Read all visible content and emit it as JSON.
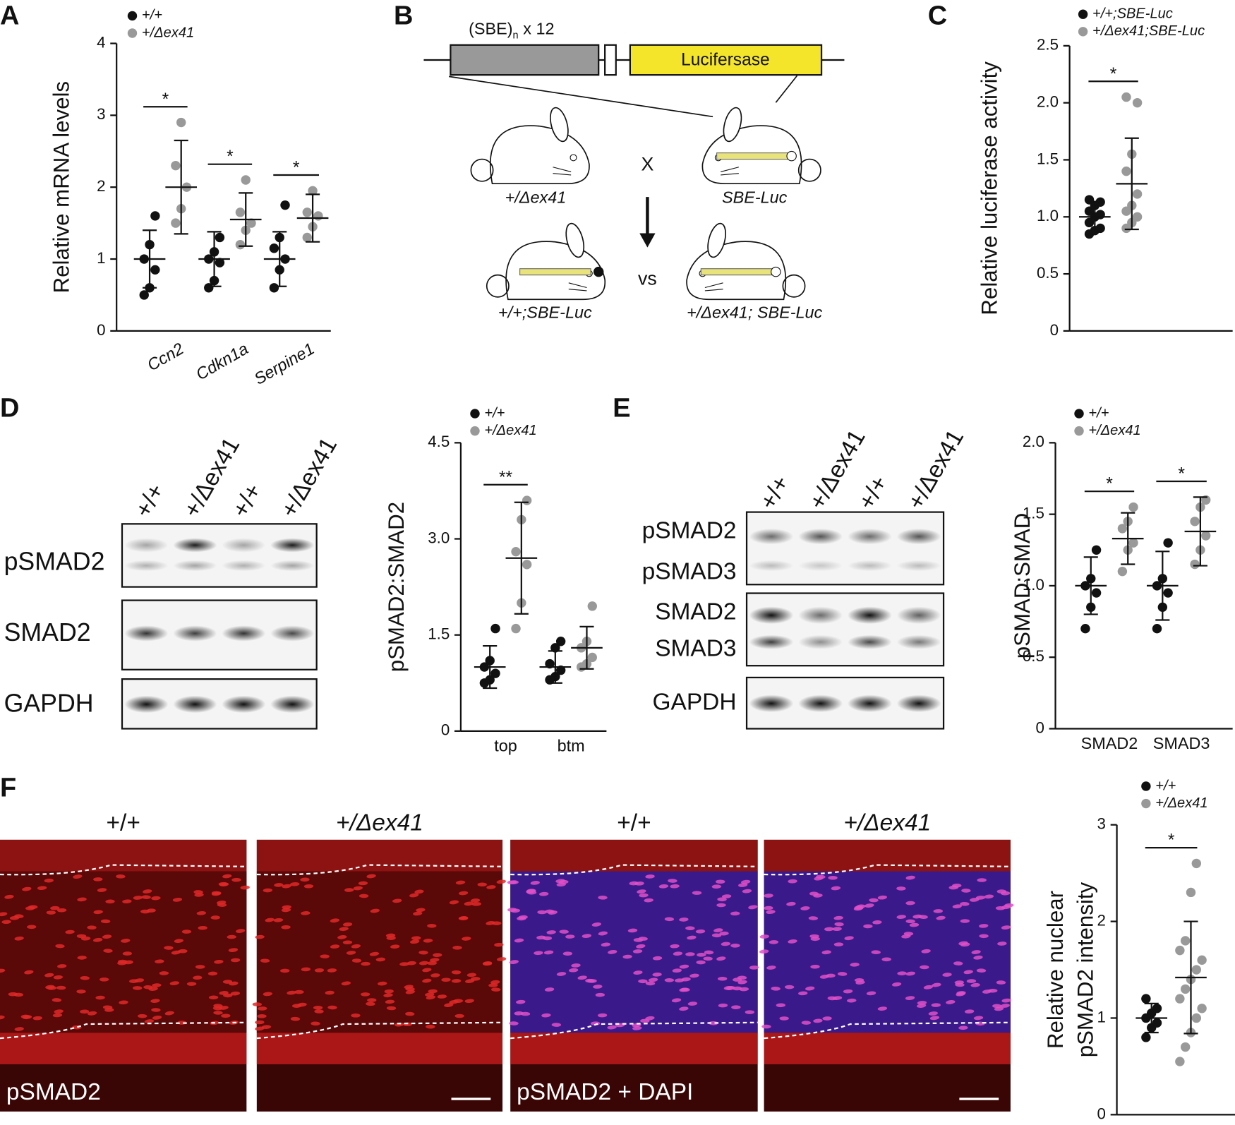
{
  "panel_labels": [
    "A",
    "B",
    "C",
    "D",
    "E",
    "F"
  ],
  "diagram": {
    "sbe": "(SBE)",
    "sub": "n",
    "repeat": "x 12",
    "reporter": "Lucifersase",
    "parent1": "+/Δex41",
    "parent2": "SBE-Luc",
    "cross": "X",
    "offspring1": "+/+;SBE-Luc",
    "vs": "vs",
    "offspring2": "+/Δex41; SBE-Luc"
  },
  "blot_d": {
    "lanes": [
      "+/+",
      "+/Δex41",
      "+/+",
      "+/Δex41"
    ],
    "rows": [
      "pSMAD2",
      "SMAD2",
      "GAPDH"
    ]
  },
  "blot_e": {
    "lanes": [
      "+/+",
      "+/Δex41",
      "+/+",
      "+/Δex41"
    ],
    "rows": [
      "pSMAD2",
      "pSMAD3",
      "SMAD2",
      "SMAD3",
      "GAPDH"
    ]
  },
  "images_f": {
    "titles": [
      "+/+",
      "+/Δex41",
      "+/+",
      "+/Δex41"
    ],
    "captions": [
      "pSMAD2",
      "pSMAD2 + DAPI"
    ]
  },
  "chart_data": [
    {
      "type": "dot",
      "ylabel": [
        "Relative mRNA levels"
      ],
      "categories": [
        "Ccn2",
        "Cdkn1a",
        "Serpine1"
      ],
      "italic_categories": true,
      "ylim": [
        0,
        4
      ],
      "yticks": [
        0,
        1,
        2,
        3,
        4
      ],
      "significance": [
        "*",
        "*",
        "*"
      ],
      "series": [
        {
          "name": "+/+",
          "color": "#111111",
          "values": [
            [
              0.5,
              0.6,
              0.85,
              1.0,
              1.2,
              1.6
            ],
            [
              0.6,
              0.7,
              0.95,
              1.0,
              1.1,
              1.3
            ],
            [
              0.6,
              0.85,
              1.0,
              1.15,
              1.3,
              1.75
            ]
          ],
          "mean": [
            1.0,
            1.0,
            1.0
          ],
          "sd": [
            0.4,
            0.38,
            0.38
          ]
        },
        {
          "name": "+/Δex41",
          "color": "#999999",
          "values": [
            [
              1.5,
              1.7,
              2.0,
              2.3,
              2.9
            ],
            [
              1.2,
              1.4,
              1.5,
              1.65,
              2.1
            ],
            [
              1.3,
              1.45,
              1.6,
              1.65,
              1.95
            ]
          ],
          "mean": [
            2.0,
            1.55,
            1.57
          ],
          "sd": [
            0.65,
            0.37,
            0.33
          ]
        }
      ]
    },
    {
      "type": "dot",
      "ylabel": [
        "Relative luciferase activity"
      ],
      "categories": [
        null
      ],
      "italic_categories": false,
      "ylim": [
        0,
        2.5
      ],
      "yticks": [
        0,
        0.5,
        {
          "value": 1,
          "label": "1.0"
        },
        1.5,
        {
          "value": 2,
          "label": "2.0"
        },
        2.5
      ],
      "significance": [
        "*"
      ],
      "series": [
        {
          "name": "+/+;SBE-Luc",
          "color": "#111111",
          "values": [
            [
              0.85,
              0.88,
              0.9,
              0.95,
              1.0,
              1.02,
              1.05,
              1.1,
              1.13,
              1.15
            ]
          ],
          "mean": [
            1.0
          ],
          "sd": [
            0.12
          ]
        },
        {
          "name": "+/Δex41;SBE-Luc",
          "color": "#999999",
          "values": [
            [
              0.9,
              0.95,
              1.0,
              1.05,
              1.1,
              1.2,
              1.4,
              1.55,
              2.0,
              2.05
            ]
          ],
          "mean": [
            1.29
          ],
          "sd": [
            0.4
          ]
        }
      ]
    },
    {
      "type": "dot",
      "ylabel": [
        "pSMAD2:SMAD2"
      ],
      "categories": [
        "top",
        "btm"
      ],
      "italic_categories": false,
      "ylim": [
        0,
        4.5
      ],
      "yticks": [
        0,
        1.5,
        {
          "value": 3,
          "label": "3.0"
        },
        4.5
      ],
      "significance": [
        "**",
        null
      ],
      "series": [
        {
          "name": "+/+",
          "color": "#111111",
          "values": [
            [
              0.75,
              0.8,
              0.9,
              1.0,
              1.1,
              1.6
            ],
            [
              0.8,
              0.85,
              0.95,
              1.05,
              1.3,
              1.4
            ]
          ],
          "mean": [
            1.0,
            1.0
          ],
          "sd": [
            0.33,
            0.25
          ]
        },
        {
          "name": "+/Δex41",
          "color": "#999999",
          "values": [
            [
              1.6,
              2.0,
              2.6,
              2.8,
              3.3,
              3.6
            ],
            [
              1.0,
              1.05,
              1.15,
              1.3,
              1.4,
              1.95
            ]
          ],
          "mean": [
            2.7,
            1.3
          ],
          "sd": [
            0.87,
            0.33
          ]
        }
      ]
    },
    {
      "type": "dot",
      "ylabel": [
        "pSMAD:SMAD"
      ],
      "categories": [
        "SMAD2",
        "SMAD3"
      ],
      "italic_categories": false,
      "ylim": [
        0,
        2
      ],
      "yticks": [
        0,
        0.5,
        {
          "value": 1,
          "label": "1.0"
        },
        1.5,
        {
          "value": 2,
          "label": "2.0"
        }
      ],
      "significance": [
        "*",
        "*"
      ],
      "series": [
        {
          "name": "+/+",
          "color": "#111111",
          "values": [
            [
              0.7,
              0.85,
              0.95,
              1.0,
              1.05,
              1.25
            ],
            [
              0.7,
              0.85,
              0.95,
              1.0,
              1.05,
              1.3
            ]
          ],
          "mean": [
            1.0,
            1.0
          ],
          "sd": [
            0.2,
            0.24
          ]
        },
        {
          "name": "+/Δex41",
          "color": "#999999",
          "values": [
            [
              1.1,
              1.25,
              1.3,
              1.4,
              1.45,
              1.55
            ],
            [
              1.15,
              1.25,
              1.35,
              1.45,
              1.55,
              1.6
            ]
          ],
          "mean": [
            1.33,
            1.38
          ],
          "sd": [
            0.18,
            0.24
          ]
        }
      ]
    },
    {
      "type": "dot",
      "ylabel": [
        "Relative nuclear",
        "pSMAD2 intensity"
      ],
      "categories": [
        null
      ],
      "italic_categories": false,
      "ylim": [
        0,
        3
      ],
      "yticks": [
        0,
        1,
        2,
        3
      ],
      "significance": [
        "*"
      ],
      "series": [
        {
          "name": "+/+",
          "color": "#111111",
          "values": [
            [
              0.8,
              0.9,
              0.95,
              1.0,
              1.05,
              1.1,
              1.2
            ]
          ],
          "mean": [
            1.0
          ],
          "sd": [
            0.15
          ]
        },
        {
          "name": "+/Δex41",
          "color": "#999999",
          "values": [
            [
              0.55,
              0.7,
              0.85,
              1.0,
              1.1,
              1.2,
              1.3,
              1.4,
              1.5,
              1.6,
              1.7,
              1.8,
              2.3,
              2.6
            ]
          ],
          "mean": [
            1.42
          ],
          "sd": [
            0.58
          ]
        }
      ]
    }
  ]
}
